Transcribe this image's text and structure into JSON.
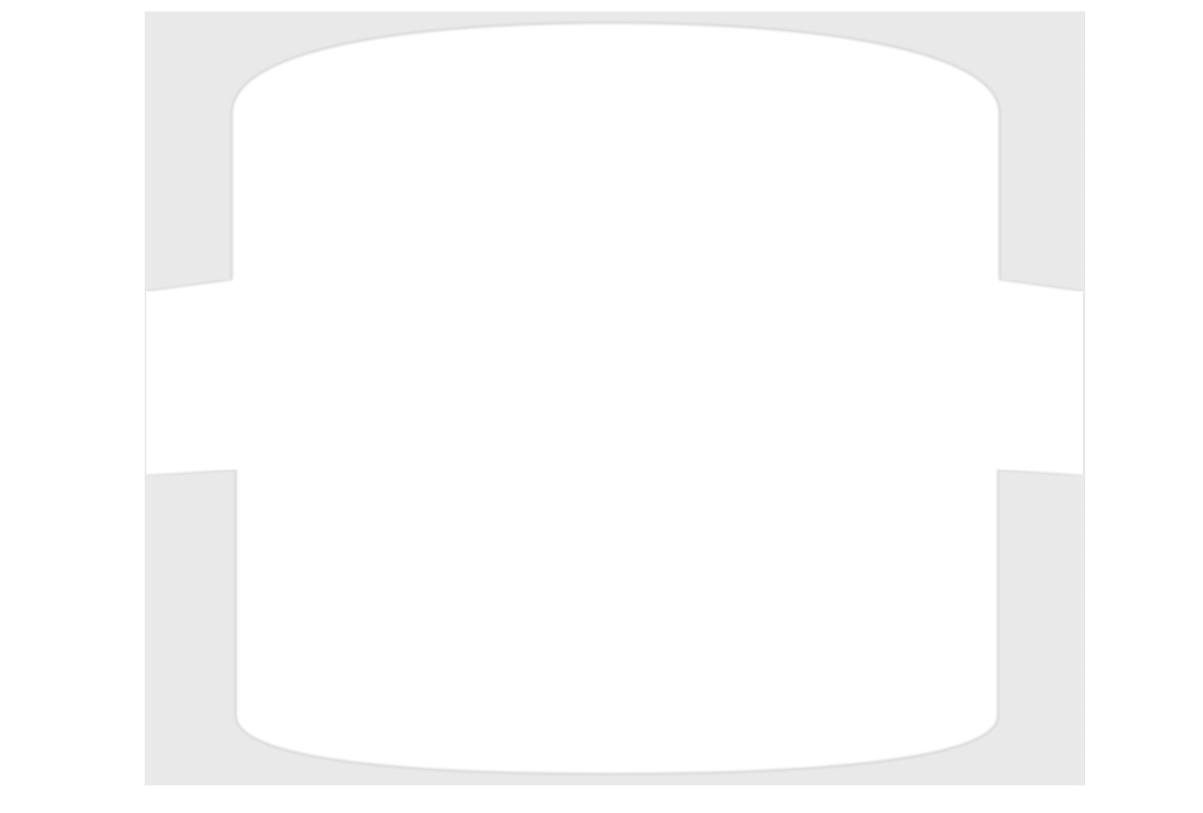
{
  "colors": {
    "page_background": "#ffffff",
    "frame_fill": "#e9e9e9",
    "frame_edge": "#d2d2d2",
    "inner_shape_fill": "#ffffff",
    "inner_shape_edge": "#dcdcdc"
  },
  "shape": {
    "kind": "rounded-barrel-cutout",
    "text_present": false
  }
}
